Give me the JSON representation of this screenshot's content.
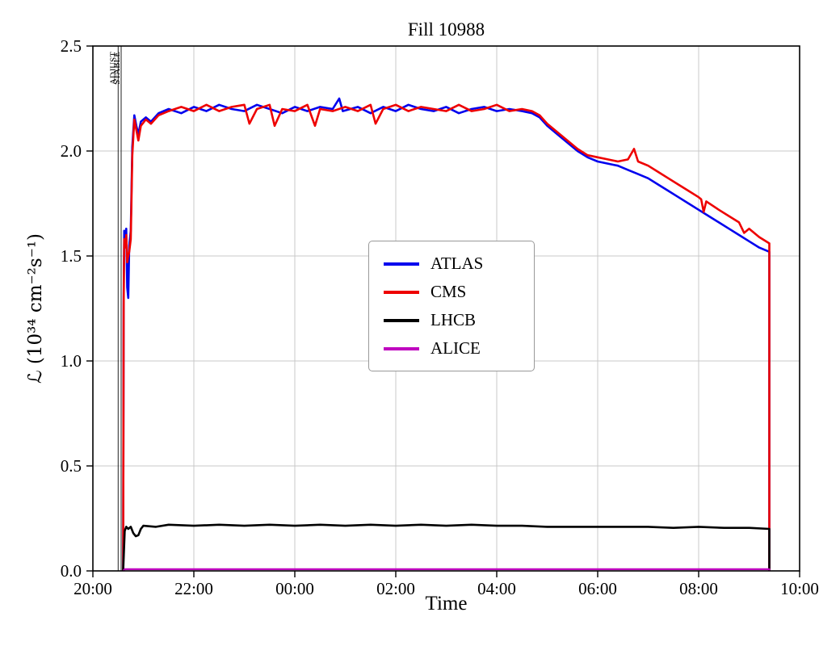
{
  "figure": {
    "background": "#ffffff"
  },
  "chart_data": {
    "type": "line",
    "title": "Fill 10988",
    "xlabel": "Time",
    "ylabel": "ℒ (10³⁴ cm⁻²s⁻¹)",
    "x_unit": "hours since 20:00",
    "xlim": [
      0,
      14
    ],
    "ylim": [
      0,
      2.5
    ],
    "grid": true,
    "grid_color": "#c9c9c9",
    "legend_position": "center",
    "xticks": [
      {
        "h": 0,
        "label": "20:00"
      },
      {
        "h": 2,
        "label": "22:00"
      },
      {
        "h": 4,
        "label": "00:00"
      },
      {
        "h": 6,
        "label": "02:00"
      },
      {
        "h": 8,
        "label": "04:00"
      },
      {
        "h": 10,
        "label": "06:00"
      },
      {
        "h": 12,
        "label": "08:00"
      },
      {
        "h": 14,
        "label": "10:00"
      }
    ],
    "yticks": [
      {
        "v": 0.0,
        "label": "0.0"
      },
      {
        "v": 0.5,
        "label": "0.5"
      },
      {
        "v": 1.0,
        "label": "1.0"
      },
      {
        "v": 1.5,
        "label": "1.5"
      },
      {
        "v": 2.0,
        "label": "2.0"
      },
      {
        "v": 2.5,
        "label": "2.5"
      }
    ],
    "annotations": [
      {
        "label": "ADJUST",
        "h": 0.5
      },
      {
        "label": "STABLE",
        "h": 0.56
      }
    ],
    "series": [
      {
        "name": "ATLAS",
        "color": "#0000ee",
        "width": 2.6,
        "points": [
          [
            0.6,
            0
          ],
          [
            0.61,
            1.3
          ],
          [
            0.62,
            1.62
          ],
          [
            0.64,
            1.57
          ],
          [
            0.66,
            1.63
          ],
          [
            0.68,
            1.35
          ],
          [
            0.7,
            1.3
          ],
          [
            0.72,
            1.55
          ],
          [
            0.75,
            1.62
          ],
          [
            0.78,
            2.02
          ],
          [
            0.82,
            2.17
          ],
          [
            0.86,
            2.12
          ],
          [
            0.9,
            2.08
          ],
          [
            0.95,
            2.14
          ],
          [
            1.05,
            2.16
          ],
          [
            1.15,
            2.14
          ],
          [
            1.3,
            2.18
          ],
          [
            1.5,
            2.2
          ],
          [
            1.75,
            2.18
          ],
          [
            2.0,
            2.21
          ],
          [
            2.25,
            2.19
          ],
          [
            2.5,
            2.22
          ],
          [
            2.75,
            2.2
          ],
          [
            3.0,
            2.19
          ],
          [
            3.25,
            2.22
          ],
          [
            3.5,
            2.2
          ],
          [
            3.75,
            2.18
          ],
          [
            4.0,
            2.21
          ],
          [
            4.25,
            2.19
          ],
          [
            4.5,
            2.21
          ],
          [
            4.75,
            2.2
          ],
          [
            4.88,
            2.25
          ],
          [
            4.95,
            2.19
          ],
          [
            5.25,
            2.21
          ],
          [
            5.5,
            2.18
          ],
          [
            5.75,
            2.21
          ],
          [
            6.0,
            2.19
          ],
          [
            6.25,
            2.22
          ],
          [
            6.5,
            2.2
          ],
          [
            6.75,
            2.19
          ],
          [
            7.0,
            2.21
          ],
          [
            7.25,
            2.18
          ],
          [
            7.5,
            2.2
          ],
          [
            7.75,
            2.21
          ],
          [
            8.0,
            2.19
          ],
          [
            8.25,
            2.2
          ],
          [
            8.5,
            2.19
          ],
          [
            8.7,
            2.18
          ],
          [
            8.85,
            2.16
          ],
          [
            9.0,
            2.12
          ],
          [
            9.2,
            2.08
          ],
          [
            9.4,
            2.04
          ],
          [
            9.6,
            2.0
          ],
          [
            9.8,
            1.97
          ],
          [
            10.0,
            1.95
          ],
          [
            10.2,
            1.94
          ],
          [
            10.4,
            1.93
          ],
          [
            10.6,
            1.91
          ],
          [
            10.8,
            1.89
          ],
          [
            11.0,
            1.87
          ],
          [
            11.2,
            1.84
          ],
          [
            11.4,
            1.81
          ],
          [
            11.6,
            1.78
          ],
          [
            11.8,
            1.75
          ],
          [
            12.0,
            1.72
          ],
          [
            12.2,
            1.69
          ],
          [
            12.4,
            1.66
          ],
          [
            12.6,
            1.63
          ],
          [
            12.8,
            1.6
          ],
          [
            13.0,
            1.57
          ],
          [
            13.2,
            1.54
          ],
          [
            13.4,
            1.52
          ],
          [
            13.4,
            0
          ]
        ]
      },
      {
        "name": "CMS",
        "color": "#ee0000",
        "width": 2.6,
        "points": [
          [
            0.6,
            0
          ],
          [
            0.61,
            1.25
          ],
          [
            0.62,
            1.58
          ],
          [
            0.64,
            1.54
          ],
          [
            0.66,
            1.6
          ],
          [
            0.68,
            1.47
          ],
          [
            0.7,
            1.5
          ],
          [
            0.72,
            1.52
          ],
          [
            0.75,
            1.58
          ],
          [
            0.78,
            1.98
          ],
          [
            0.82,
            2.15
          ],
          [
            0.86,
            2.1
          ],
          [
            0.9,
            2.05
          ],
          [
            0.95,
            2.12
          ],
          [
            1.05,
            2.15
          ],
          [
            1.15,
            2.13
          ],
          [
            1.3,
            2.17
          ],
          [
            1.5,
            2.19
          ],
          [
            1.75,
            2.21
          ],
          [
            2.0,
            2.19
          ],
          [
            2.25,
            2.22
          ],
          [
            2.5,
            2.19
          ],
          [
            2.75,
            2.21
          ],
          [
            3.0,
            2.22
          ],
          [
            3.1,
            2.13
          ],
          [
            3.25,
            2.2
          ],
          [
            3.5,
            2.22
          ],
          [
            3.6,
            2.12
          ],
          [
            3.75,
            2.2
          ],
          [
            4.0,
            2.19
          ],
          [
            4.25,
            2.22
          ],
          [
            4.4,
            2.12
          ],
          [
            4.5,
            2.2
          ],
          [
            4.75,
            2.19
          ],
          [
            5.0,
            2.21
          ],
          [
            5.25,
            2.19
          ],
          [
            5.5,
            2.22
          ],
          [
            5.6,
            2.13
          ],
          [
            5.75,
            2.2
          ],
          [
            6.0,
            2.22
          ],
          [
            6.25,
            2.19
          ],
          [
            6.5,
            2.21
          ],
          [
            6.75,
            2.2
          ],
          [
            7.0,
            2.19
          ],
          [
            7.25,
            2.22
          ],
          [
            7.5,
            2.19
          ],
          [
            7.75,
            2.2
          ],
          [
            8.0,
            2.22
          ],
          [
            8.25,
            2.19
          ],
          [
            8.5,
            2.2
          ],
          [
            8.7,
            2.19
          ],
          [
            8.85,
            2.17
          ],
          [
            9.0,
            2.13
          ],
          [
            9.2,
            2.09
          ],
          [
            9.4,
            2.05
          ],
          [
            9.6,
            2.01
          ],
          [
            9.8,
            1.98
          ],
          [
            10.0,
            1.97
          ],
          [
            10.2,
            1.96
          ],
          [
            10.4,
            1.95
          ],
          [
            10.6,
            1.96
          ],
          [
            10.72,
            2.01
          ],
          [
            10.8,
            1.95
          ],
          [
            11.0,
            1.93
          ],
          [
            11.2,
            1.9
          ],
          [
            11.4,
            1.87
          ],
          [
            11.6,
            1.84
          ],
          [
            11.8,
            1.81
          ],
          [
            12.0,
            1.78
          ],
          [
            12.05,
            1.77
          ],
          [
            12.1,
            1.71
          ],
          [
            12.15,
            1.76
          ],
          [
            12.4,
            1.72
          ],
          [
            12.6,
            1.69
          ],
          [
            12.8,
            1.66
          ],
          [
            12.9,
            1.61
          ],
          [
            13.0,
            1.63
          ],
          [
            13.2,
            1.59
          ],
          [
            13.4,
            1.56
          ],
          [
            13.4,
            0
          ]
        ]
      },
      {
        "name": "LHCB",
        "color": "#000000",
        "width": 2.6,
        "points": [
          [
            0.6,
            0
          ],
          [
            0.63,
            0.19
          ],
          [
            0.66,
            0.21
          ],
          [
            0.7,
            0.2
          ],
          [
            0.75,
            0.21
          ],
          [
            0.8,
            0.18
          ],
          [
            0.85,
            0.165
          ],
          [
            0.9,
            0.17
          ],
          [
            0.95,
            0.2
          ],
          [
            1.0,
            0.215
          ],
          [
            1.25,
            0.21
          ],
          [
            1.5,
            0.22
          ],
          [
            2.0,
            0.215
          ],
          [
            2.5,
            0.22
          ],
          [
            3.0,
            0.215
          ],
          [
            3.5,
            0.22
          ],
          [
            4.0,
            0.215
          ],
          [
            4.5,
            0.22
          ],
          [
            5.0,
            0.215
          ],
          [
            5.5,
            0.22
          ],
          [
            6.0,
            0.215
          ],
          [
            6.5,
            0.22
          ],
          [
            7.0,
            0.215
          ],
          [
            7.5,
            0.22
          ],
          [
            8.0,
            0.215
          ],
          [
            8.5,
            0.215
          ],
          [
            9.0,
            0.21
          ],
          [
            9.5,
            0.21
          ],
          [
            10.0,
            0.21
          ],
          [
            10.5,
            0.21
          ],
          [
            11.0,
            0.21
          ],
          [
            11.5,
            0.205
          ],
          [
            12.0,
            0.21
          ],
          [
            12.5,
            0.205
          ],
          [
            13.0,
            0.205
          ],
          [
            13.4,
            0.2
          ],
          [
            13.4,
            0
          ]
        ]
      },
      {
        "name": "ALICE",
        "color": "#bf00bf",
        "width": 2.2,
        "points": [
          [
            0.6,
            0
          ],
          [
            0.63,
            0.008
          ],
          [
            7.0,
            0.008
          ],
          [
            13.4,
            0.008
          ],
          [
            13.4,
            0
          ]
        ]
      }
    ]
  }
}
